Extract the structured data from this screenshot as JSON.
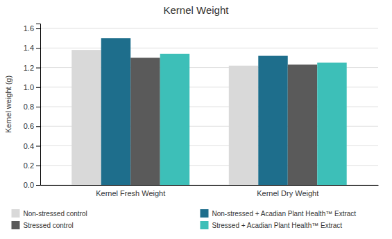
{
  "chart_data": {
    "type": "bar",
    "title": "Kernel Weight",
    "ylabel": "Kernel weight (g)",
    "categories": [
      "Kernel Fresh Weight",
      "Kernel Dry Weight"
    ],
    "series": [
      {
        "name": "Non-stressed control",
        "color": "#d9d9d9",
        "values": [
          1.38,
          1.22
        ]
      },
      {
        "name": "Non-stressed + Acadian Plant Health™ Extract",
        "color": "#1e6e8c",
        "values": [
          1.5,
          1.32
        ]
      },
      {
        "name": "Stressed control",
        "color": "#5a5a5a",
        "values": [
          1.3,
          1.23
        ]
      },
      {
        "name": "Stressed + Acadian Plant Health™ Extract",
        "color": "#3dbfb8",
        "values": [
          1.34,
          1.25
        ]
      }
    ],
    "ylim": [
      0.0,
      1.65
    ],
    "yticks": [
      {
        "value": 0.0,
        "label": "0.0"
      },
      0.2,
      0.4,
      0.6,
      0.8,
      {
        "value": 1.0,
        "label": "1.0"
      },
      1.2,
      1.4,
      1.6
    ],
    "grid": true,
    "legend": "bottom"
  }
}
